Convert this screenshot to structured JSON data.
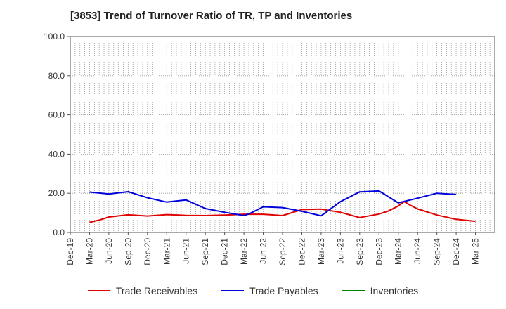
{
  "chart_data": {
    "type": "line",
    "title": "[3853]  Trend of Turnover Ratio of TR, TP and Inventories",
    "ylim": [
      0,
      100
    ],
    "yticks": [
      "0.0",
      "20.0",
      "40.0",
      "60.0",
      "80.0",
      "100.0"
    ],
    "ytick_values": [
      0,
      20,
      40,
      60,
      80,
      100
    ],
    "x_categories": [
      "Dec-19",
      "Mar-20",
      "Jun-20",
      "Sep-20",
      "Dec-20",
      "Mar-21",
      "Jun-21",
      "Sep-21",
      "Dec-21",
      "Mar-22",
      "Jun-22",
      "Sep-22",
      "Dec-22",
      "Mar-23",
      "Jun-23",
      "Sep-23",
      "Dec-23",
      "Mar-24",
      "Jun-24",
      "Sep-24",
      "Dec-24",
      "Mar-25"
    ],
    "grid": true,
    "legend_position": "bottom",
    "series": [
      {
        "name": "Trade Receivables",
        "color": "#e00000",
        "points": [
          [
            1,
            5.2
          ],
          [
            1.5,
            6.3
          ],
          [
            2,
            7.9
          ],
          [
            3,
            9.0
          ],
          [
            4,
            8.4
          ],
          [
            5,
            9.1
          ],
          [
            6,
            8.7
          ],
          [
            7,
            8.6
          ],
          [
            8,
            8.9
          ],
          [
            9,
            9.3
          ],
          [
            10,
            9.3
          ],
          [
            11,
            8.6
          ],
          [
            12,
            11.7
          ],
          [
            13,
            11.9
          ],
          [
            14,
            10.3
          ],
          [
            15,
            7.6
          ],
          [
            16,
            9.4
          ],
          [
            16.5,
            11.0
          ],
          [
            17,
            13.5
          ],
          [
            17.3,
            15.8
          ],
          [
            17.6,
            14.0
          ],
          [
            18,
            12.0
          ],
          [
            19,
            8.9
          ],
          [
            20,
            6.7
          ],
          [
            21,
            5.7
          ]
        ]
      },
      {
        "name": "Trade Payables",
        "color": "#0000dd",
        "points": [
          [
            1,
            20.6
          ],
          [
            2,
            19.6
          ],
          [
            3,
            20.8
          ],
          [
            4,
            17.7
          ],
          [
            5,
            15.5
          ],
          [
            6,
            16.6
          ],
          [
            7,
            12.2
          ],
          [
            8,
            10.3
          ],
          [
            9,
            8.6
          ],
          [
            9.3,
            9.6
          ],
          [
            10,
            13.1
          ],
          [
            11,
            12.7
          ],
          [
            12,
            10.8
          ],
          [
            13,
            8.5
          ],
          [
            14,
            15.7
          ],
          [
            15,
            20.7
          ],
          [
            16,
            21.2
          ],
          [
            17,
            15.1
          ],
          [
            18,
            17.5
          ],
          [
            19,
            20.0
          ],
          [
            20,
            19.4
          ]
        ]
      },
      {
        "name": "Inventories",
        "color": "#008000",
        "points": []
      }
    ]
  }
}
